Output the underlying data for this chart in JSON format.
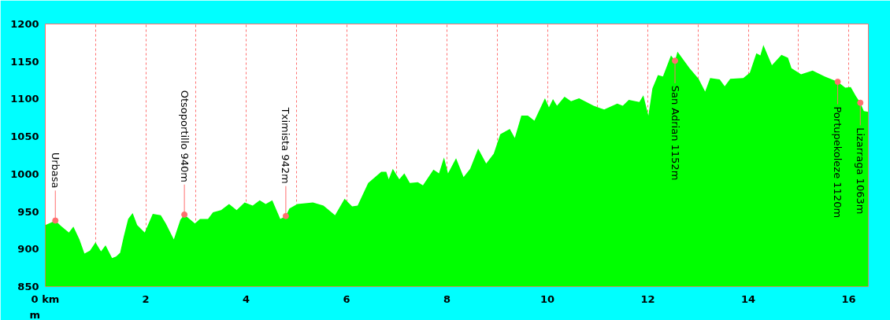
{
  "chart_data": {
    "type": "area",
    "ylabel": "m",
    "x": [
      0,
      0.1,
      0.2,
      0.31,
      0.47,
      0.56,
      0.68,
      0.78,
      0.89,
      1.0,
      1.11,
      1.2,
      1.33,
      1.41,
      1.49,
      1.56,
      1.65,
      1.74,
      1.83,
      1.98,
      2.14,
      2.3,
      2.4,
      2.56,
      2.69,
      2.77,
      2.98,
      3.08,
      3.24,
      3.34,
      3.5,
      3.66,
      3.81,
      3.97,
      4.13,
      4.27,
      4.39,
      4.52,
      4.68,
      4.79,
      4.86,
      5.02,
      5.33,
      5.54,
      5.77,
      5.96,
      6.11,
      6.22,
      6.43,
      6.69,
      6.79,
      6.84,
      6.92,
      7.05,
      7.15,
      7.26,
      7.42,
      7.52,
      7.73,
      7.84,
      7.94,
      8.02,
      8.18,
      8.33,
      8.46,
      8.62,
      8.78,
      8.93,
      9.06,
      9.25,
      9.35,
      9.48,
      9.61,
      9.74,
      9.95,
      10.03,
      10.11,
      10.19,
      10.34,
      10.47,
      10.63,
      10.92,
      11.13,
      11.39,
      11.5,
      11.62,
      11.83,
      11.91,
      12.01,
      12.09,
      12.2,
      12.3,
      12.46,
      12.54,
      12.59,
      12.83,
      13.01,
      13.14,
      13.24,
      13.43,
      13.53,
      13.64,
      13.9,
      14.03,
      14.16,
      14.24,
      14.3,
      14.47,
      14.66,
      14.79,
      14.86,
      15.05,
      15.28,
      15.52,
      15.78,
      15.93,
      16.04,
      16.14,
      16.23,
      16.3,
      16.39
    ],
    "series": [
      {
        "color": "#00ff00",
        "values": [
          932,
          935,
          938,
          931,
          922,
          930,
          913,
          894,
          898,
          909,
          897,
          905,
          888,
          890,
          895,
          916,
          940,
          948,
          932,
          922,
          947,
          945,
          934,
          913,
          939,
          946,
          934,
          940,
          940,
          949,
          952,
          960,
          952,
          962,
          958,
          965,
          960,
          965,
          940,
          944,
          954,
          960,
          962,
          958,
          945,
          967,
          957,
          958,
          988,
          1003,
          1003,
          993,
          1007,
          993,
          1001,
          988,
          989,
          985,
          1006,
          1001,
          1022,
          1001,
          1021,
          996,
          1007,
          1034,
          1014,
          1027,
          1053,
          1060,
          1048,
          1078,
          1078,
          1071,
          1101,
          1089,
          1100,
          1091,
          1103,
          1097,
          1101,
          1091,
          1086,
          1094,
          1091,
          1099,
          1096,
          1105,
          1078,
          1114,
          1132,
          1130,
          1158,
          1151,
          1163,
          1141,
          1127,
          1110,
          1128,
          1126,
          1117,
          1127,
          1128,
          1135,
          1161,
          1158,
          1172,
          1145,
          1159,
          1155,
          1141,
          1133,
          1138,
          1130,
          1123,
          1115,
          1116,
          1104,
          1095,
          1084,
          1083
        ]
      }
    ],
    "xlim": [
      0,
      16.39
    ],
    "ylim": [
      850,
      1200
    ],
    "xticks": [
      {
        "value": 0,
        "label": "0 km"
      },
      {
        "value": 1,
        "label": null
      },
      2,
      {
        "value": 3,
        "label": null
      },
      4,
      {
        "value": 5,
        "label": null
      },
      6,
      {
        "value": 7,
        "label": null
      },
      8,
      {
        "value": 9,
        "label": null
      },
      10,
      {
        "value": 11,
        "label": null
      },
      12,
      {
        "value": 13,
        "label": null
      },
      14,
      {
        "value": 15,
        "label": null
      },
      16
    ],
    "yticks": [
      850,
      900,
      950,
      1000,
      1050,
      1100,
      1150,
      1200
    ],
    "grid": "x",
    "annotations": [
      {
        "text": "Urbasa",
        "x": 0.2,
        "y": 938
      },
      {
        "text": "Otsoportillo 940m",
        "x": 2.77,
        "y": 946
      },
      {
        "text": "Tximista 942m",
        "x": 4.79,
        "y": 944
      },
      {
        "text": "San Adrian 1152m",
        "x": 12.54,
        "y": 1151
      },
      {
        "text": "Portupekoleze 1120m",
        "x": 15.78,
        "y": 1123
      },
      {
        "text": "Lizarraga 1063m",
        "x": 16.23,
        "y": 1095
      }
    ]
  }
}
